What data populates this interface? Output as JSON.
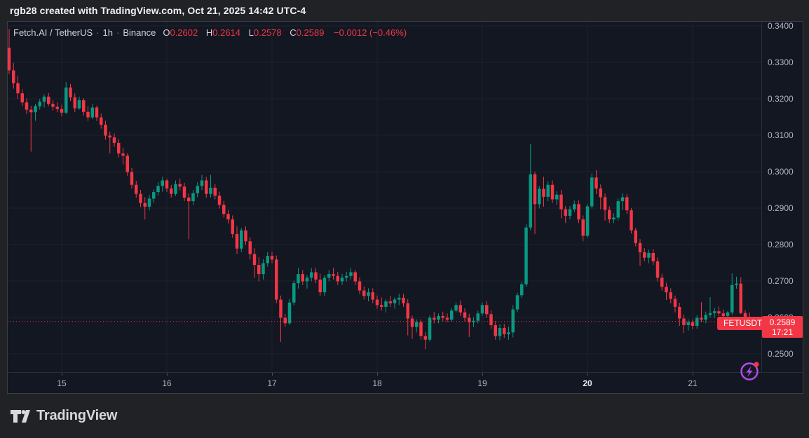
{
  "attribution": "rgb28 created with TradingView.com, Oct 21, 2025 14:42 UTC-4",
  "legend": {
    "symbol_title": "Fetch.AI / TetherUS",
    "separator": "·",
    "interval": "1h",
    "exchange": "Binance",
    "ohlc": [
      {
        "label": "O",
        "value": "0.2602"
      },
      {
        "label": "H",
        "value": "0.2614"
      },
      {
        "label": "L",
        "value": "0.2578"
      },
      {
        "label": "C",
        "value": "0.2589"
      }
    ],
    "change": "−0.0012 (−0.46%)"
  },
  "price_scale": {
    "labels": [
      {
        "text": "0.3400",
        "price": 0.34
      },
      {
        "text": "0.3300",
        "price": 0.33
      },
      {
        "text": "0.3200",
        "price": 0.32
      },
      {
        "text": "0.3100",
        "price": 0.31
      },
      {
        "text": "0.3000",
        "price": 0.3
      },
      {
        "text": "0.2900",
        "price": 0.29
      },
      {
        "text": "0.2800",
        "price": 0.28
      },
      {
        "text": "0.2700",
        "price": 0.27
      },
      {
        "text": "0.2600",
        "price": 0.26
      },
      {
        "text": "0.2500",
        "price": 0.25
      }
    ]
  },
  "time_scale": {
    "labels": [
      {
        "text": "15",
        "candle_index": 12,
        "bold": false
      },
      {
        "text": "16",
        "candle_index": 36,
        "bold": false
      },
      {
        "text": "17",
        "candle_index": 60,
        "bold": false
      },
      {
        "text": "18",
        "candle_index": 84,
        "bold": false
      },
      {
        "text": "19",
        "candle_index": 108,
        "bold": false
      },
      {
        "text": "20",
        "candle_index": 132,
        "bold": true
      },
      {
        "text": "21",
        "candle_index": 156,
        "bold": false
      }
    ]
  },
  "price_line": {
    "price": 0.2589
  },
  "price_badge": {
    "price": "0.2589",
    "countdown": "17:21"
  },
  "symbol_badge": "FETUSDT",
  "logo": {
    "text": "TradingView"
  },
  "colors": {
    "up": "#089981",
    "down": "#f23645",
    "grid": "#1e2230",
    "accent": "#f23645",
    "purple": "#b14cf0"
  },
  "chart_data": {
    "type": "candlestick",
    "title": "Fetch.AI / TetherUS 1h Binance",
    "symbol": "FETUSDT",
    "interval": "1h",
    "exchange": "Binance",
    "last_close": 0.2589,
    "change": -0.0012,
    "change_pct": -0.46,
    "ylim": [
      0.245,
      0.3412
    ],
    "x_range_days": [
      "Oct 14 12:00",
      "Oct 21 14:00"
    ],
    "grid": true,
    "candles": [
      [
        0.334,
        0.3392,
        0.3268,
        0.3278
      ],
      [
        0.3278,
        0.3298,
        0.3228,
        0.3243
      ],
      [
        0.3243,
        0.3262,
        0.32,
        0.3215
      ],
      [
        0.3215,
        0.3226,
        0.318,
        0.319
      ],
      [
        0.319,
        0.3201,
        0.3158,
        0.317
      ],
      [
        0.317,
        0.3181,
        0.3055,
        0.3163
      ],
      [
        0.3163,
        0.3186,
        0.314,
        0.318
      ],
      [
        0.318,
        0.32,
        0.317,
        0.3192
      ],
      [
        0.3192,
        0.3212,
        0.3176,
        0.3206
      ],
      [
        0.3206,
        0.3216,
        0.318,
        0.3186
      ],
      [
        0.3186,
        0.3196,
        0.3168,
        0.3178
      ],
      [
        0.3178,
        0.319,
        0.3163,
        0.3172
      ],
      [
        0.3172,
        0.3184,
        0.3152,
        0.3162
      ],
      [
        0.3162,
        0.3246,
        0.3158,
        0.3231
      ],
      [
        0.3231,
        0.3241,
        0.3194,
        0.3204
      ],
      [
        0.3204,
        0.3215,
        0.3163,
        0.3174
      ],
      [
        0.3174,
        0.3206,
        0.317,
        0.3196
      ],
      [
        0.3196,
        0.3202,
        0.3154,
        0.3164
      ],
      [
        0.3164,
        0.318,
        0.3139,
        0.3149
      ],
      [
        0.3149,
        0.3186,
        0.3144,
        0.3176
      ],
      [
        0.3176,
        0.3181,
        0.3139,
        0.3149
      ],
      [
        0.3149,
        0.316,
        0.3118,
        0.3129
      ],
      [
        0.3129,
        0.314,
        0.3088,
        0.3099
      ],
      [
        0.3099,
        0.311,
        0.305,
        0.3094
      ],
      [
        0.3094,
        0.3105,
        0.3068,
        0.3079
      ],
      [
        0.3079,
        0.309,
        0.3039,
        0.305
      ],
      [
        0.305,
        0.3066,
        0.302,
        0.3044
      ],
      [
        0.3044,
        0.3051,
        0.2989,
        0.2999
      ],
      [
        0.2999,
        0.301,
        0.2954,
        0.2964
      ],
      [
        0.2964,
        0.2975,
        0.2929,
        0.2939
      ],
      [
        0.2939,
        0.295,
        0.2903,
        0.2914
      ],
      [
        0.2914,
        0.293,
        0.2869,
        0.2904
      ],
      [
        0.2904,
        0.2936,
        0.2894,
        0.2926
      ],
      [
        0.2926,
        0.2951,
        0.2915,
        0.2944
      ],
      [
        0.2944,
        0.2971,
        0.2934,
        0.2961
      ],
      [
        0.2961,
        0.2986,
        0.2945,
        0.2976
      ],
      [
        0.2976,
        0.2981,
        0.2944,
        0.2954
      ],
      [
        0.2954,
        0.2964,
        0.2929,
        0.2939
      ],
      [
        0.2939,
        0.2976,
        0.2934,
        0.2966
      ],
      [
        0.2966,
        0.2981,
        0.2949,
        0.2959
      ],
      [
        0.2959,
        0.297,
        0.2919,
        0.2929
      ],
      [
        0.2929,
        0.294,
        0.2815,
        0.2919
      ],
      [
        0.2919,
        0.295,
        0.2909,
        0.2941
      ],
      [
        0.2941,
        0.2971,
        0.293,
        0.2961
      ],
      [
        0.2961,
        0.2991,
        0.2949,
        0.2976
      ],
      [
        0.2976,
        0.2986,
        0.2929,
        0.2939
      ],
      [
        0.2939,
        0.2991,
        0.2929,
        0.2956
      ],
      [
        0.2956,
        0.2966,
        0.2924,
        0.2934
      ],
      [
        0.2934,
        0.2945,
        0.2899,
        0.2909
      ],
      [
        0.2909,
        0.292,
        0.2874,
        0.2884
      ],
      [
        0.2884,
        0.2895,
        0.2858,
        0.2869
      ],
      [
        0.2869,
        0.288,
        0.2819,
        0.2829
      ],
      [
        0.2829,
        0.285,
        0.2774,
        0.2789
      ],
      [
        0.2789,
        0.2846,
        0.2779,
        0.2839
      ],
      [
        0.2839,
        0.285,
        0.2799,
        0.2809
      ],
      [
        0.2809,
        0.282,
        0.2759,
        0.2774
      ],
      [
        0.2774,
        0.279,
        0.2709,
        0.2744
      ],
      [
        0.2744,
        0.2765,
        0.2699,
        0.2719
      ],
      [
        0.2719,
        0.276,
        0.2704,
        0.2749
      ],
      [
        0.2749,
        0.278,
        0.2739,
        0.2769
      ],
      [
        0.2769,
        0.278,
        0.2749,
        0.2759
      ],
      [
        0.2759,
        0.277,
        0.2639,
        0.2649
      ],
      [
        0.2649,
        0.266,
        0.2533,
        0.2599
      ],
      [
        0.2599,
        0.261,
        0.2574,
        0.2584
      ],
      [
        0.2584,
        0.2651,
        0.2579,
        0.2641
      ],
      [
        0.2641,
        0.2701,
        0.2634,
        0.2694
      ],
      [
        0.2694,
        0.2736,
        0.2679,
        0.2719
      ],
      [
        0.2719,
        0.273,
        0.2689,
        0.2699
      ],
      [
        0.2699,
        0.2716,
        0.2679,
        0.2709
      ],
      [
        0.2709,
        0.2736,
        0.2699,
        0.2724
      ],
      [
        0.2724,
        0.2736,
        0.2694,
        0.2704
      ],
      [
        0.2704,
        0.272,
        0.2659,
        0.2669
      ],
      [
        0.2669,
        0.2716,
        0.2659,
        0.2709
      ],
      [
        0.2709,
        0.273,
        0.2699,
        0.2719
      ],
      [
        0.2719,
        0.2736,
        0.2704,
        0.2714
      ],
      [
        0.2714,
        0.2725,
        0.2689,
        0.2699
      ],
      [
        0.2699,
        0.272,
        0.2689,
        0.2709
      ],
      [
        0.2709,
        0.2725,
        0.2699,
        0.2714
      ],
      [
        0.2714,
        0.2736,
        0.2704,
        0.2724
      ],
      [
        0.2724,
        0.273,
        0.2689,
        0.2699
      ],
      [
        0.2699,
        0.271,
        0.2664,
        0.2674
      ],
      [
        0.2674,
        0.2685,
        0.2649,
        0.2659
      ],
      [
        0.2659,
        0.268,
        0.2644,
        0.2669
      ],
      [
        0.2669,
        0.268,
        0.2639,
        0.2649
      ],
      [
        0.2649,
        0.266,
        0.2624,
        0.2634
      ],
      [
        0.2634,
        0.2655,
        0.2619,
        0.2629
      ],
      [
        0.2629,
        0.265,
        0.2614,
        0.2644
      ],
      [
        0.2644,
        0.266,
        0.2629,
        0.2639
      ],
      [
        0.2639,
        0.2655,
        0.2624,
        0.2649
      ],
      [
        0.2649,
        0.2665,
        0.2634,
        0.2654
      ],
      [
        0.2654,
        0.2665,
        0.2629,
        0.2639
      ],
      [
        0.2639,
        0.265,
        0.2551,
        0.2597
      ],
      [
        0.2597,
        0.2605,
        0.2541,
        0.2574
      ],
      [
        0.2574,
        0.2595,
        0.2559,
        0.2587
      ],
      [
        0.2587,
        0.2595,
        0.2539,
        0.2549
      ],
      [
        0.2549,
        0.256,
        0.2513,
        0.2539
      ],
      [
        0.2539,
        0.2606,
        0.2534,
        0.2599
      ],
      [
        0.2599,
        0.2615,
        0.2584,
        0.2594
      ],
      [
        0.2594,
        0.2611,
        0.2584,
        0.2604
      ],
      [
        0.2604,
        0.2616,
        0.2589,
        0.2599
      ],
      [
        0.2599,
        0.2611,
        0.2587,
        0.2594
      ],
      [
        0.2594,
        0.2626,
        0.2589,
        0.2619
      ],
      [
        0.2619,
        0.2641,
        0.2614,
        0.2634
      ],
      [
        0.2634,
        0.2647,
        0.2604,
        0.2614
      ],
      [
        0.2614,
        0.2625,
        0.2589,
        0.2599
      ],
      [
        0.2599,
        0.261,
        0.2546,
        0.2587
      ],
      [
        0.2587,
        0.2601,
        0.2574,
        0.2591
      ],
      [
        0.2591,
        0.2619,
        0.2584,
        0.2611
      ],
      [
        0.2611,
        0.2641,
        0.2604,
        0.2634
      ],
      [
        0.2634,
        0.2645,
        0.2599,
        0.2609
      ],
      [
        0.2609,
        0.262,
        0.2569,
        0.2579
      ],
      [
        0.2579,
        0.259,
        0.2539,
        0.2549
      ],
      [
        0.2549,
        0.2581,
        0.2537,
        0.2571
      ],
      [
        0.2571,
        0.2582,
        0.2544,
        0.2554
      ],
      [
        0.2554,
        0.2575,
        0.2539,
        0.2559
      ],
      [
        0.2559,
        0.2634,
        0.2545,
        0.2622
      ],
      [
        0.2622,
        0.2668,
        0.2615,
        0.2661
      ],
      [
        0.2661,
        0.2698,
        0.2654,
        0.2691
      ],
      [
        0.2691,
        0.2856,
        0.2684,
        0.2847
      ],
      [
        0.2847,
        0.3077,
        0.2839,
        0.2993
      ],
      [
        0.2993,
        0.3,
        0.2829,
        0.2911
      ],
      [
        0.2911,
        0.2961,
        0.2899,
        0.2953
      ],
      [
        0.2953,
        0.2986,
        0.2904,
        0.2931
      ],
      [
        0.2931,
        0.2974,
        0.2919,
        0.2964
      ],
      [
        0.2964,
        0.2976,
        0.2914,
        0.2924
      ],
      [
        0.2924,
        0.2946,
        0.2909,
        0.2937
      ],
      [
        0.2937,
        0.295,
        0.2872,
        0.2897
      ],
      [
        0.2897,
        0.2906,
        0.2859,
        0.2879
      ],
      [
        0.2879,
        0.2906,
        0.2869,
        0.2897
      ],
      [
        0.2897,
        0.2921,
        0.2889,
        0.2911
      ],
      [
        0.2911,
        0.2921,
        0.2859,
        0.2869
      ],
      [
        0.2869,
        0.288,
        0.2809,
        0.2824
      ],
      [
        0.2824,
        0.2911,
        0.2819,
        0.2905
      ],
      [
        0.2905,
        0.2995,
        0.2899,
        0.2984
      ],
      [
        0.2984,
        0.3004,
        0.2939,
        0.2954
      ],
      [
        0.2954,
        0.2965,
        0.2897,
        0.293
      ],
      [
        0.293,
        0.294,
        0.2866,
        0.2895
      ],
      [
        0.2895,
        0.2905,
        0.2859,
        0.2869
      ],
      [
        0.2869,
        0.2886,
        0.2859,
        0.2874
      ],
      [
        0.2874,
        0.2926,
        0.2866,
        0.2919
      ],
      [
        0.2919,
        0.2941,
        0.2895,
        0.293
      ],
      [
        0.293,
        0.2938,
        0.2884,
        0.2894
      ],
      [
        0.2894,
        0.29,
        0.283,
        0.2839
      ],
      [
        0.2839,
        0.2846,
        0.2795,
        0.2804
      ],
      [
        0.2804,
        0.2815,
        0.2741,
        0.2779
      ],
      [
        0.2779,
        0.279,
        0.2754,
        0.2764
      ],
      [
        0.2764,
        0.2786,
        0.2749,
        0.2777
      ],
      [
        0.2777,
        0.2788,
        0.2744,
        0.2754
      ],
      [
        0.2754,
        0.2765,
        0.2699,
        0.2709
      ],
      [
        0.2709,
        0.272,
        0.2674,
        0.2684
      ],
      [
        0.2684,
        0.2695,
        0.2648,
        0.2669
      ],
      [
        0.2669,
        0.268,
        0.2639,
        0.2651
      ],
      [
        0.2651,
        0.266,
        0.2614,
        0.2629
      ],
      [
        0.2629,
        0.264,
        0.2577,
        0.2597
      ],
      [
        0.2597,
        0.2608,
        0.2557,
        0.2579
      ],
      [
        0.2579,
        0.2595,
        0.2564,
        0.2587
      ],
      [
        0.2587,
        0.2595,
        0.2567,
        0.2577
      ],
      [
        0.2577,
        0.2606,
        0.2569,
        0.2599
      ],
      [
        0.2599,
        0.2642,
        0.2587,
        0.2594
      ],
      [
        0.2594,
        0.2616,
        0.2584,
        0.2607
      ],
      [
        0.2607,
        0.2656,
        0.2599,
        0.2612
      ],
      [
        0.2612,
        0.2626,
        0.2599,
        0.2617
      ],
      [
        0.2617,
        0.263,
        0.2604,
        0.2611
      ],
      [
        0.2611,
        0.2622,
        0.2597,
        0.2604
      ],
      [
        0.2604,
        0.2618,
        0.2594,
        0.2614
      ],
      [
        0.2614,
        0.2721,
        0.2607,
        0.2689
      ],
      [
        0.2689,
        0.2712,
        0.2679,
        0.2693
      ],
      [
        0.2693,
        0.271,
        0.2609,
        0.2612
      ],
      [
        0.2612,
        0.262,
        0.2584,
        0.2602
      ],
      [
        0.2602,
        0.2614,
        0.2578,
        0.2589
      ]
    ]
  }
}
